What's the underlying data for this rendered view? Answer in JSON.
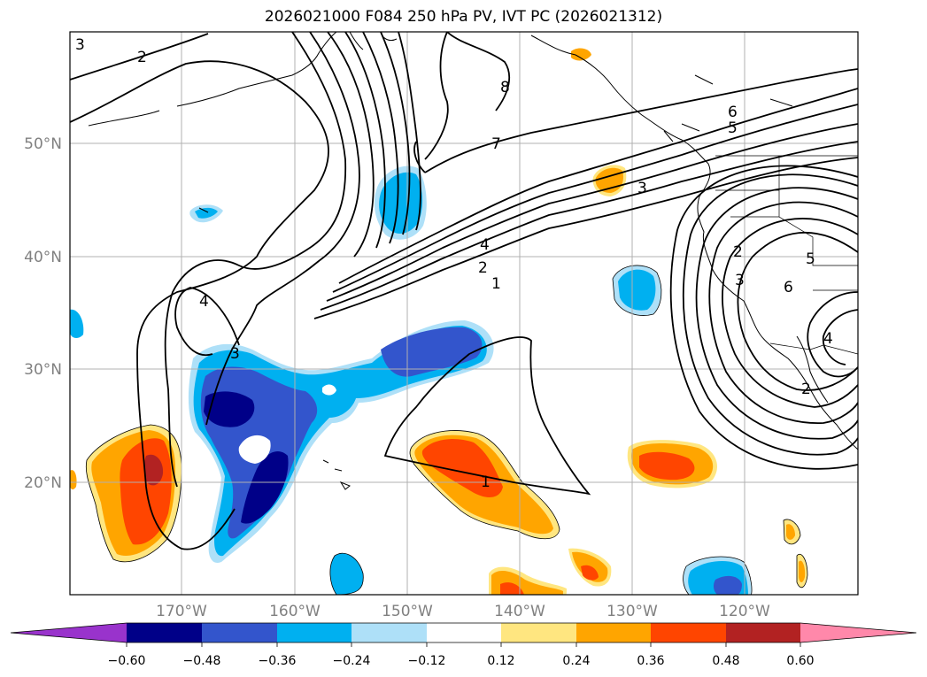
{
  "title": "2026021000 F084 250 hPa PV, IVT PC (2026021312)",
  "map": {
    "lat_labels": [
      "50°N",
      "40°N",
      "30°N",
      "20°N"
    ],
    "lon_labels": [
      "170°W",
      "160°W",
      "150°W",
      "140°W",
      "130°W",
      "120°W"
    ],
    "contour_labels": [
      "3",
      "2",
      "8",
      "7",
      "6",
      "5",
      "3",
      "4",
      "2",
      "1",
      "4",
      "3",
      "1",
      "2",
      "5",
      "3",
      "6",
      "4",
      "2"
    ]
  },
  "colorbar": {
    "ticks": [
      "−0.60",
      "−0.48",
      "−0.36",
      "−0.24",
      "−0.12",
      "0.12",
      "0.24",
      "0.36",
      "0.48",
      "0.60"
    ],
    "colors": [
      "#9933cc",
      "#000088",
      "#3355cc",
      "#00b0f0",
      "#aee0f8",
      "#ffffff",
      "#ffe680",
      "#ffa500",
      "#ff4500",
      "#b22222",
      "#ff88aa"
    ]
  },
  "fill_colors": {
    "neg_light": "#aee0f8",
    "neg_cyan": "#00b0f0",
    "neg_blue": "#3355cc",
    "neg_dark": "#000088",
    "pos_yellow": "#ffe680",
    "pos_orange": "#ffa500",
    "pos_red": "#ff4500",
    "pos_dark": "#b22222"
  }
}
